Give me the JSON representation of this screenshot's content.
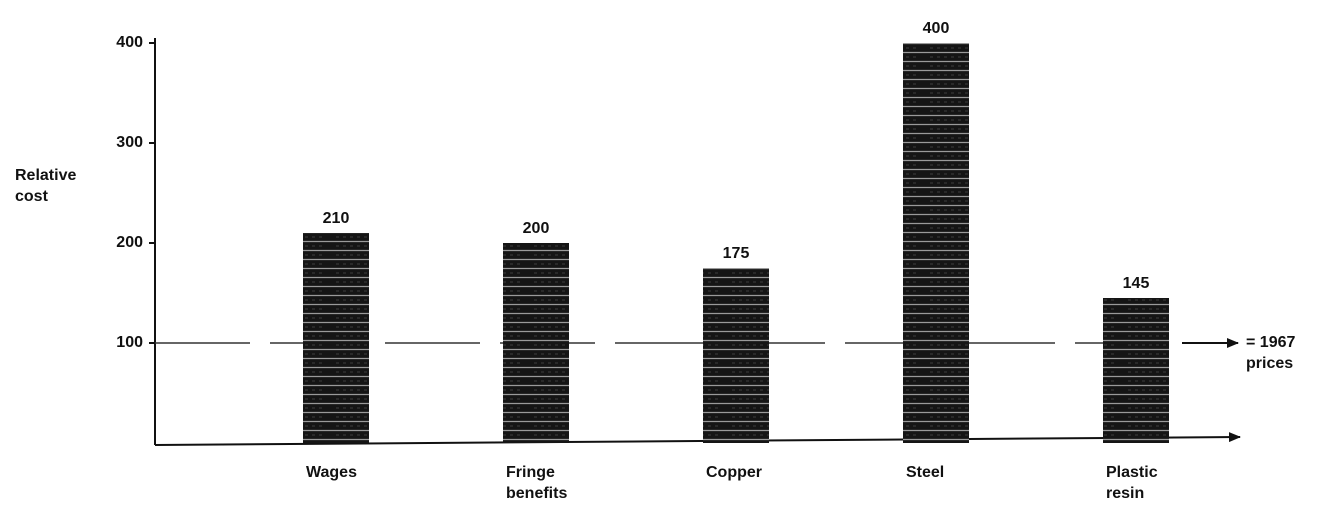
{
  "chart_data": {
    "type": "bar",
    "y_label": "Relative cost",
    "categories": [
      "Wages",
      "Fringe benefits",
      "Copper",
      "Steel",
      "Plastic resin"
    ],
    "values": [
      210,
      200,
      175,
      400,
      145
    ],
    "color": "#151515",
    "ylim": [
      0,
      400
    ],
    "yticks": [
      100,
      200,
      300,
      400
    ],
    "reference_line": {
      "value": 100,
      "label": "= 1967 prices"
    }
  }
}
